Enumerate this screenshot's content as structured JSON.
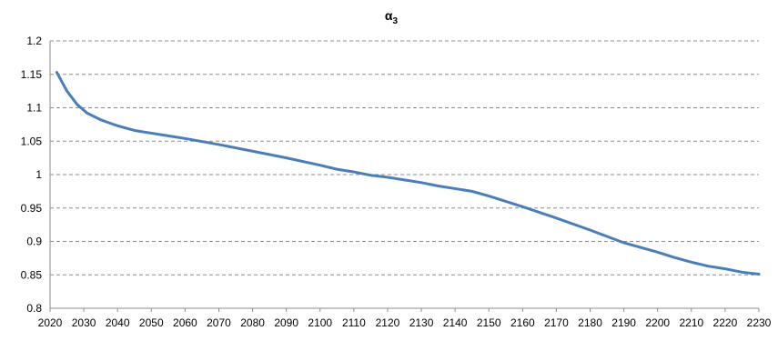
{
  "chart_data": {
    "type": "line",
    "title": "α",
    "title_subscript": "3",
    "xlabel": "",
    "ylabel": "",
    "xlim": [
      2020,
      2230
    ],
    "ylim": [
      0.8,
      1.2
    ],
    "grid": true,
    "legend": "none",
    "x_ticks": [
      2020,
      2030,
      2040,
      2050,
      2060,
      2070,
      2080,
      2090,
      2100,
      2110,
      2120,
      2130,
      2140,
      2150,
      2160,
      2170,
      2180,
      2190,
      2200,
      2210,
      2220,
      2230
    ],
    "x_tick_labels": [
      "2020",
      "2030",
      "2040",
      "2050",
      "2060",
      "2070",
      "2080",
      "2090",
      "2100",
      "2110",
      "2120",
      "2130",
      "2140",
      "2150",
      "2160",
      "2170",
      "2180",
      "2190",
      "2200",
      "2210",
      "2220",
      "2230"
    ],
    "y_ticks": [
      0.8,
      0.85,
      0.9,
      0.95,
      1.0,
      1.05,
      1.1,
      1.15,
      1.2
    ],
    "y_tick_labels": [
      "0.8",
      "0.85",
      "0.9",
      "0.95",
      "1",
      "1.05",
      "1.1",
      "1.15",
      "1.2"
    ],
    "series": [
      {
        "color": "#4a7ebb",
        "x": [
          2022,
          2025,
          2028,
          2031,
          2035,
          2040,
          2045,
          2050,
          2055,
          2060,
          2070,
          2080,
          2090,
          2100,
          2105,
          2110,
          2115,
          2120,
          2125,
          2130,
          2135,
          2140,
          2145,
          2150,
          2160,
          2170,
          2180,
          2190,
          2200,
          2205,
          2210,
          2215,
          2220,
          2225,
          2230
        ],
        "y": [
          1.153,
          1.125,
          1.105,
          1.092,
          1.082,
          1.073,
          1.066,
          1.062,
          1.058,
          1.054,
          1.045,
          1.035,
          1.025,
          1.014,
          1.008,
          1.004,
          0.999,
          0.996,
          0.992,
          0.988,
          0.983,
          0.979,
          0.975,
          0.968,
          0.952,
          0.935,
          0.917,
          0.898,
          0.884,
          0.876,
          0.869,
          0.863,
          0.859,
          0.854,
          0.851
        ]
      }
    ]
  }
}
